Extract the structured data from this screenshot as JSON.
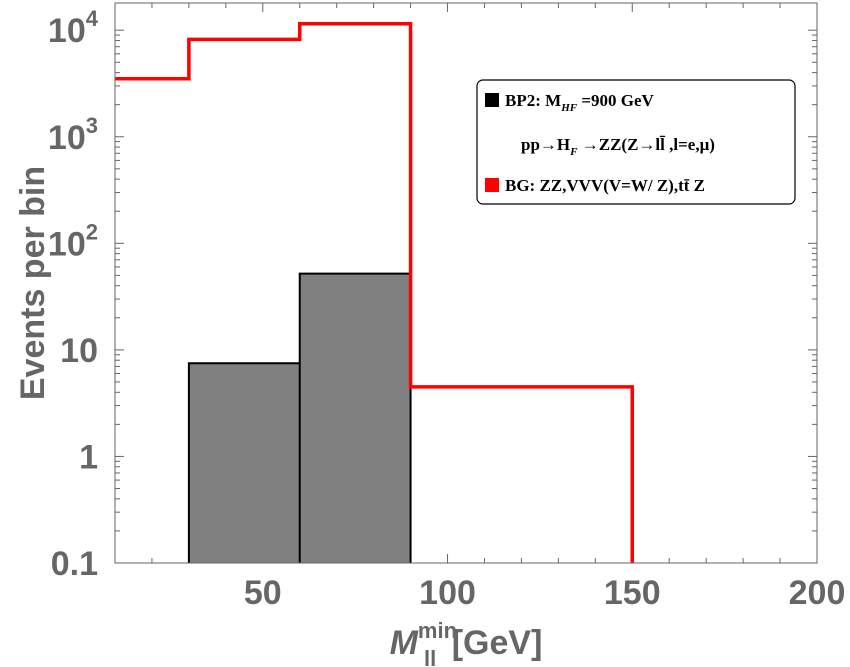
{
  "chart_data": {
    "type": "histogram",
    "title": "",
    "xlabel": {
      "main": "M",
      "sub": "ll",
      "sup": "min",
      "unit": "[GeV]"
    },
    "ylabel": "Events per bin",
    "xlim": [
      10,
      200
    ],
    "ylim": [
      0.1,
      18000
    ],
    "yscale": "log",
    "xticks": [
      {
        "value": 50,
        "label": "50"
      },
      {
        "value": 100,
        "label": "100"
      },
      {
        "value": 150,
        "label": "150"
      },
      {
        "value": 200,
        "label": "200"
      }
    ],
    "yticks": [
      {
        "value": 0.1,
        "label": "0.1"
      },
      {
        "value": 1,
        "label": "1"
      },
      {
        "value": 10,
        "label": "10"
      },
      {
        "value": 100,
        "label": "10",
        "sup": "2"
      },
      {
        "value": 1000,
        "label": "10",
        "sup": "3"
      },
      {
        "value": 10000,
        "label": "10",
        "sup": "4"
      }
    ],
    "legend_position": "top-right",
    "series": [
      {
        "id": "signal",
        "color": "#808080",
        "style": "filled",
        "edges": [
          30,
          60,
          90
        ],
        "values": [
          7.5,
          52
        ]
      },
      {
        "id": "background",
        "color": "#ff0000",
        "style": "step",
        "edges": [
          10,
          30,
          60,
          90,
          150
        ],
        "values": [
          3500,
          8200,
          11500,
          4.5
        ]
      }
    ],
    "legend": [
      {
        "swatch": "#000000",
        "text": "BP2: M",
        "sub": "HF",
        "after": " =900 GeV"
      },
      {
        "swatch": null,
        "text": "pp→H",
        "sub": "F",
        "after": " →ZZ(Z→ll̄ ,l=e,μ)"
      },
      {
        "swatch": "#ff0000",
        "text": "BG: ZZ,VVV(V=W/ Z),tt̄ Z"
      }
    ]
  }
}
